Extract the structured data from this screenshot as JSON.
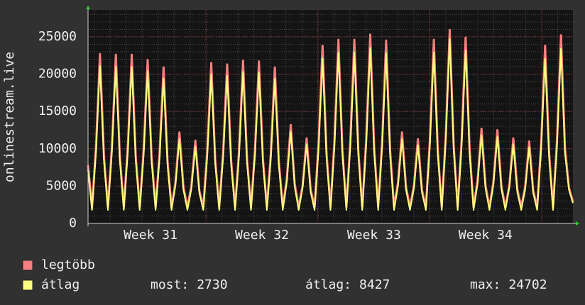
{
  "chart_data": {
    "type": "line",
    "ylabel": "onlinestream.live",
    "xlim": [
      0,
      30.5
    ],
    "xticks": [
      {
        "value": 3.93,
        "label": "Week 31"
      },
      {
        "value": 10.94,
        "label": "Week 32"
      },
      {
        "value": 17.99,
        "label": "Week 33"
      },
      {
        "value": 25.0,
        "label": "Week 34"
      }
    ],
    "x_major_grid": [
      7.42,
      14.46,
      21.5,
      28.54
    ],
    "ylim": [
      0,
      28600
    ],
    "yticks": [
      0,
      5000,
      10000,
      15000,
      20000,
      25000
    ],
    "grid": true,
    "x": [
      0,
      0.25,
      0.5,
      0.75,
      1,
      1.25,
      1.5,
      1.75,
      2,
      2.25,
      2.5,
      2.75,
      3,
      3.25,
      3.5,
      3.75,
      4,
      4.25,
      4.5,
      4.75,
      5,
      5.25,
      5.5,
      5.75,
      6,
      6.25,
      6.5,
      6.75,
      7,
      7.25,
      7.5,
      7.75,
      8,
      8.25,
      8.5,
      8.75,
      9,
      9.25,
      9.5,
      9.75,
      10,
      10.25,
      10.5,
      10.75,
      11,
      11.25,
      11.5,
      11.75,
      12,
      12.25,
      12.5,
      12.75,
      13,
      13.25,
      13.5,
      13.75,
      14,
      14.25,
      14.5,
      14.75,
      15,
      15.25,
      15.5,
      15.75,
      16,
      16.25,
      16.5,
      16.75,
      17,
      17.25,
      17.5,
      17.75,
      18,
      18.25,
      18.5,
      18.75,
      19,
      19.25,
      19.5,
      19.75,
      20,
      20.25,
      20.5,
      20.75,
      21,
      21.25,
      21.5,
      21.75,
      22,
      22.25,
      22.5,
      22.75,
      23,
      23.25,
      23.5,
      23.75,
      24,
      24.25,
      24.5,
      24.75,
      25,
      25.25,
      25.5,
      25.75,
      26,
      26.25,
      26.5,
      26.75,
      27,
      27.25,
      27.5,
      27.75,
      28,
      28.25,
      28.5,
      28.75,
      29,
      29.25,
      29.5,
      29.75,
      30,
      30.25,
      30.5
    ],
    "series": [
      {
        "name": "legtöbb",
        "color": "#f77f7f",
        "values": [
          7800,
          2200,
          10200,
          22700,
          9100,
          2200,
          10200,
          22600,
          9000,
          2200,
          10200,
          22600,
          9000,
          2200,
          9900,
          21900,
          8800,
          2200,
          9400,
          20900,
          8400,
          2200,
          5500,
          12200,
          4900,
          2200,
          5000,
          11100,
          4400,
          2200,
          9700,
          21500,
          8600,
          2200,
          9600,
          21300,
          8500,
          2200,
          9800,
          21800,
          8700,
          2200,
          9800,
          21700,
          8700,
          2200,
          9400,
          20900,
          8400,
          2200,
          5900,
          13200,
          5300,
          2200,
          5100,
          11400,
          4600,
          2200,
          10700,
          23800,
          9500,
          2200,
          11100,
          24600,
          9800,
          2200,
          11100,
          24600,
          9800,
          2200,
          11400,
          25300,
          10100,
          2200,
          11000,
          24500,
          9800,
          2200,
          5500,
          12200,
          4900,
          2200,
          5100,
          11300,
          4500,
          2200,
          11100,
          24600,
          9800,
          2200,
          11700,
          25900,
          10400,
          2200,
          11200,
          24900,
          10000,
          2200,
          5700,
          12700,
          5100,
          2200,
          5600,
          12500,
          5000,
          2200,
          5100,
          11400,
          4600,
          2200,
          5000,
          11000,
          4400,
          2200,
          10700,
          23800,
          9500,
          2200,
          11300,
          25200,
          10100,
          4800,
          2900
        ]
      },
      {
        "name": "átlag",
        "color": "#ffff7f",
        "values": [
          7200,
          1800,
          9500,
          21100,
          8400,
          1800,
          9500,
          21000,
          8400,
          1800,
          9500,
          21000,
          8400,
          1800,
          9200,
          20400,
          8200,
          1800,
          8700,
          19400,
          7800,
          1800,
          5100,
          11300,
          4500,
          1800,
          4600,
          10300,
          4100,
          1800,
          9000,
          20000,
          8000,
          1800,
          8900,
          19800,
          7900,
          1800,
          9100,
          20300,
          8100,
          1800,
          9100,
          20200,
          8100,
          1800,
          8700,
          19400,
          7800,
          1800,
          5500,
          12300,
          4900,
          1800,
          4800,
          10600,
          4200,
          1800,
          9900,
          22100,
          8800,
          1800,
          10300,
          22900,
          9200,
          1800,
          10300,
          22900,
          9200,
          1800,
          10600,
          23500,
          9400,
          1800,
          10300,
          22800,
          9100,
          1800,
          5100,
          11300,
          4500,
          1800,
          4700,
          10500,
          4200,
          1800,
          10300,
          22900,
          9200,
          1800,
          11100,
          24700,
          9900,
          1800,
          10400,
          23200,
          9300,
          1800,
          5300,
          11800,
          4700,
          1800,
          5200,
          11600,
          4600,
          1800,
          4800,
          10600,
          4200,
          1800,
          4600,
          10200,
          4100,
          1800,
          9900,
          22100,
          8800,
          1800,
          10500,
          23400,
          9400,
          4500,
          2730
        ]
      }
    ],
    "stats": [
      {
        "label": "most:",
        "value": 2730
      },
      {
        "label": "átlag:",
        "value": 8427
      },
      {
        "label": "max:",
        "value": 24702
      }
    ]
  }
}
